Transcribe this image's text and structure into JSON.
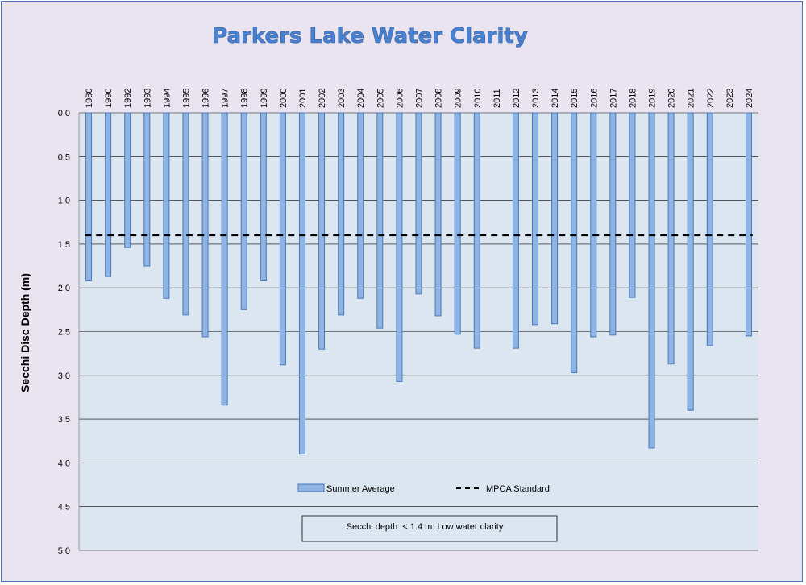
{
  "chart_data": {
    "type": "bar",
    "title": "Parkers Lake Water Clarity",
    "ylabel": "Secchi Disc Depth (m)",
    "ylim": [
      0,
      5
    ],
    "y_inverted": true,
    "y_ticks": [
      "0.0",
      "0.5",
      "1.0",
      "1.5",
      "2.0",
      "2.5",
      "3.0",
      "3.5",
      "4.0",
      "4.5",
      "5.0"
    ],
    "categories": [
      "1980",
      "1990",
      "1992",
      "1993",
      "1994",
      "1995",
      "1996",
      "1997",
      "1998",
      "1999",
      "2000",
      "2001",
      "2002",
      "2003",
      "2004",
      "2005",
      "2006",
      "2007",
      "2008",
      "2009",
      "2010",
      "2011",
      "2012",
      "2013",
      "2014",
      "2015",
      "2016",
      "2017",
      "2018",
      "2019",
      "2020",
      "2021",
      "2022",
      "2023",
      "2024"
    ],
    "series": [
      {
        "name": "Summer Average",
        "color": "#8db4e2",
        "values": [
          1.92,
          1.87,
          1.54,
          1.75,
          2.12,
          2.31,
          2.56,
          3.34,
          2.25,
          1.92,
          2.88,
          3.9,
          2.7,
          2.31,
          2.12,
          2.46,
          3.07,
          2.07,
          2.32,
          2.53,
          2.69,
          null,
          2.69,
          2.42,
          2.41,
          2.97,
          2.56,
          2.54,
          2.11,
          3.83,
          2.87,
          3.4,
          2.66,
          null,
          2.55
        ]
      }
    ],
    "reference_line": {
      "name": "MPCA Standard",
      "value": 1.4
    },
    "legend": {
      "placement": "bottom-center",
      "entries": [
        "Summer Average",
        "MPCA Standard"
      ]
    },
    "annotation": "Secchi depth  < 1.4 m: Low water clarity",
    "grid": true
  }
}
